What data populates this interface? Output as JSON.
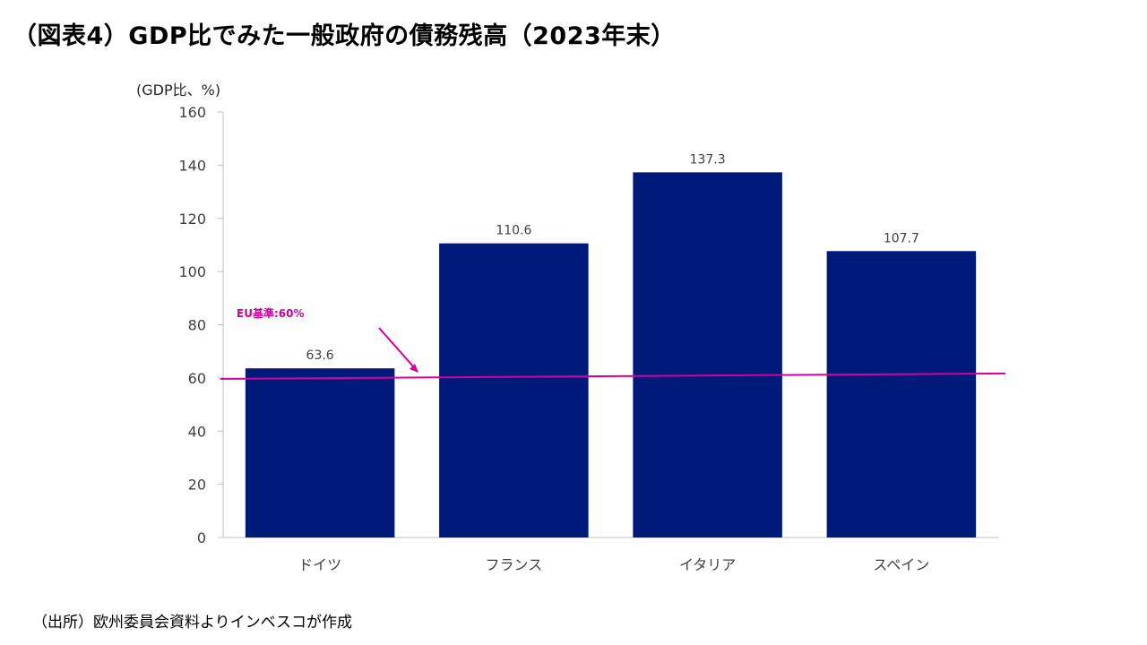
{
  "title": "（図表4）GDP比でみた一般政府の債務残高（2023年末）",
  "source": "（出所）欧州委員会資料よりインベスコが作成",
  "colors": {
    "bar": "#001a7a",
    "reference": "#d4009d",
    "axis": "#bfbfbf"
  },
  "chart_data": {
    "type": "bar",
    "unit_label": "(GDP比、%)",
    "categories": [
      "ドイツ",
      "フランス",
      "イタリア",
      "スペイン"
    ],
    "values": [
      63.6,
      110.6,
      137.3,
      107.7
    ],
    "value_labels": [
      "63.6",
      "110.6",
      "137.3",
      "107.7"
    ],
    "ylim": [
      0,
      160
    ],
    "yticks": [
      0,
      20,
      40,
      60,
      80,
      100,
      120,
      140,
      160
    ],
    "grid": false,
    "reference_line": {
      "value": 60,
      "label": "EU基準:60%"
    }
  }
}
